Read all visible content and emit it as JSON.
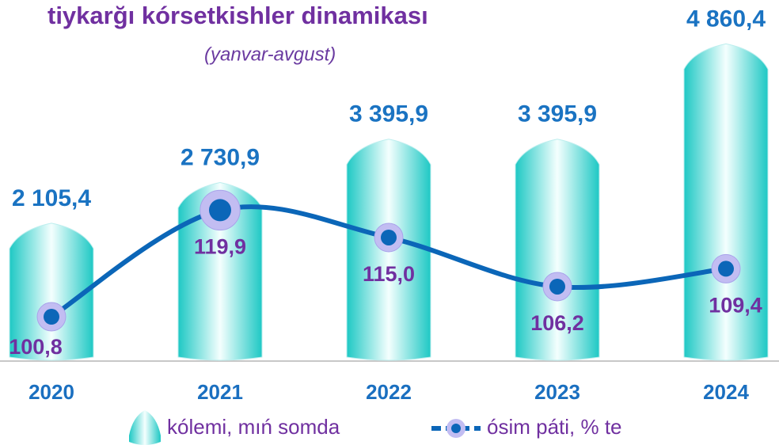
{
  "chart_data": {
    "type": "bar",
    "title": "tiykarğı kórsetkishler dinamikası",
    "subtitle": "(yanvar-avgust)",
    "categories": [
      "2020",
      "2021",
      "2022",
      "2023",
      "2024"
    ],
    "ylim": [
      0,
      5400
    ],
    "y2lim": [
      93,
      156
    ],
    "series": [
      {
        "name": "kólemi, mıń somda",
        "type": "bar",
        "color": "#2fd0cc",
        "values": [
          2105.4,
          2730.9,
          3395.9,
          3395.9,
          4860.4
        ],
        "value_labels": [
          "2 105,4",
          "2 730,9",
          "3 395,9",
          "3 395,9",
          "4 860,4"
        ]
      },
      {
        "name": "ósim páti, % te",
        "type": "line",
        "axis": "y2",
        "color": "#0b66b8",
        "values": [
          100.8,
          119.9,
          115.0,
          106.2,
          109.4
        ],
        "value_labels": [
          "100,8",
          "119,9",
          "115,0",
          "106,2",
          "109,4"
        ]
      }
    ]
  }
}
